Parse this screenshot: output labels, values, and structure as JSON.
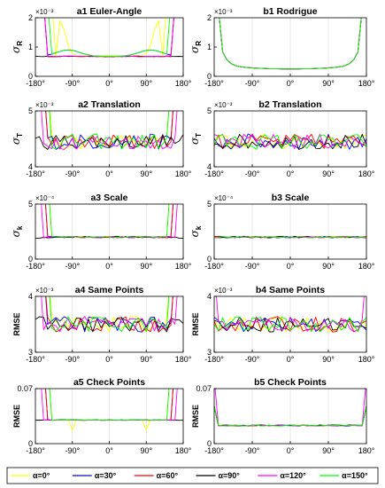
{
  "legend": {
    "entries": [
      {
        "name": "α=0°",
        "color": "#ffff00"
      },
      {
        "name": "α=30°",
        "color": "#0000ff"
      },
      {
        "name": "α=60°",
        "color": "#ff0000"
      },
      {
        "name": "α=90°",
        "color": "#000000"
      },
      {
        "name": "α=120°",
        "color": "#ff00ff"
      },
      {
        "name": "α=150°",
        "color": "#00ff00"
      }
    ]
  },
  "x_ticks": [
    "-180°",
    "-90°",
    "0°",
    "90°",
    "180°"
  ],
  "chart_data": [
    {
      "id": "a1",
      "type": "line",
      "title": "a1 Euler-Angle",
      "ylabel_sym": "σ",
      "ylabel_sub": "R",
      "exponent": "×10⁻³",
      "xlim": [
        -180,
        180
      ],
      "ylim": [
        0,
        2
      ],
      "yticks": [
        "0",
        "1",
        "2"
      ],
      "pattern": "euler_a",
      "base": 0.68,
      "spike_at": [
        -150,
        -140,
        -120,
        120,
        140,
        150
      ],
      "notes": "values exceed the y-range near ±180°"
    },
    {
      "id": "b1",
      "type": "line",
      "title": "b1 Rodrigue",
      "ylabel_sym": "σ",
      "ylabel_sub": "R",
      "exponent": "×10⁻³",
      "xlim": [
        -180,
        180
      ],
      "ylim": [
        0,
        2
      ],
      "yticks": [
        "0",
        "1",
        "2"
      ],
      "pattern": "bowl",
      "base": 0.25
    },
    {
      "id": "a2",
      "type": "line",
      "title": "a2 Translation",
      "ylabel_sym": "σ",
      "ylabel_sub": "T",
      "exponent": "×10⁻³",
      "xlim": [
        -180,
        180
      ],
      "ylim": [
        4,
        5
      ],
      "yticks": [
        "4",
        "5"
      ],
      "pattern": "noisy_spike",
      "base": 4.45
    },
    {
      "id": "b2",
      "type": "line",
      "title": "b2 Translation",
      "ylabel_sym": "σ",
      "ylabel_sub": "T",
      "exponent": "×10⁻³",
      "xlim": [
        -180,
        180
      ],
      "ylim": [
        4,
        5
      ],
      "yticks": [
        "4",
        "5"
      ],
      "pattern": "noisy",
      "base": 4.45
    },
    {
      "id": "a3",
      "type": "line",
      "title": "a3 Scale",
      "ylabel_sym": "σ",
      "ylabel_sub": "k",
      "exponent": "×10⁻⁴",
      "xlim": [
        -180,
        180
      ],
      "ylim": [
        0,
        5
      ],
      "yticks": [
        "0",
        "5"
      ],
      "pattern": "flat_spike",
      "base": 2.0
    },
    {
      "id": "b3",
      "type": "line",
      "title": "b3 Scale",
      "ylabel_sym": "σ",
      "ylabel_sub": "k",
      "exponent": "×10⁻⁴",
      "xlim": [
        -180,
        180
      ],
      "ylim": [
        0,
        5
      ],
      "yticks": [
        "0",
        "5"
      ],
      "pattern": "flat",
      "base": 2.0
    },
    {
      "id": "a4",
      "type": "line",
      "title": "a4 Same Points",
      "ylabel_txt": "RMSE",
      "exponent": "×10⁻³",
      "xlim": [
        -180,
        180
      ],
      "ylim": [
        3,
        4
      ],
      "yticks": [
        "3",
        "4"
      ],
      "pattern": "noisy_spike",
      "base": 3.5
    },
    {
      "id": "b4",
      "type": "line",
      "title": "b4 Same Points",
      "ylabel_txt": "RMSE",
      "exponent": "×10⁻³",
      "xlim": [
        -180,
        180
      ],
      "ylim": [
        3,
        4
      ],
      "yticks": [
        "3",
        "4"
      ],
      "pattern": "noisy_edge",
      "base": 3.5
    },
    {
      "id": "a5",
      "type": "line",
      "title": "a5 Check Points",
      "ylabel_txt": "RMSE",
      "xlim": [
        -180,
        180
      ],
      "ylim": [
        0,
        0.07
      ],
      "yticks": [
        "0",
        "0.07"
      ],
      "pattern": "check_a",
      "base": 0.03
    },
    {
      "id": "b5",
      "type": "line",
      "title": "b5 Check Points",
      "ylabel_txt": "RMSE",
      "xlim": [
        -180,
        180
      ],
      "ylim": [
        0,
        0.07
      ],
      "yticks": [
        "0",
        "0.07"
      ],
      "pattern": "check_b",
      "base": 0.023
    }
  ]
}
